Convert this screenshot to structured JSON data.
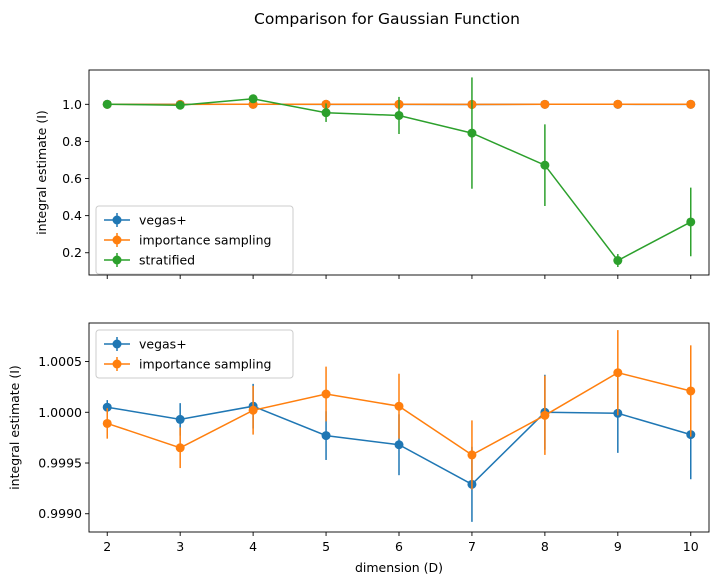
{
  "figure": {
    "suptitle": "Comparison for Gaussian Function"
  },
  "chart_data": [
    {
      "type": "line",
      "title": "",
      "xlabel": "",
      "ylabel": "integral estimate (I)",
      "x": [
        2,
        3,
        4,
        5,
        6,
        7,
        8,
        9,
        10
      ],
      "xlim": [
        1.75,
        10.25
      ],
      "ylim": [
        0.08,
        1.185
      ],
      "yticks": [
        0.2,
        0.4,
        0.6,
        0.8,
        1.0
      ],
      "ytick_labels": [
        "0.2",
        "0.4",
        "0.6",
        "0.8",
        "1.0"
      ],
      "xticks": [
        2,
        3,
        4,
        5,
        6,
        7,
        8,
        9,
        10
      ],
      "show_xtick_labels": false,
      "legend_position": "lower-left",
      "series": [
        {
          "name": "vegas+",
          "color": "#1f77b4",
          "values": [
            1.0001,
            0.9999,
            1.0001,
            0.9998,
            0.9997,
            0.9993,
            1.0,
            1.0,
            0.9998
          ],
          "errors": [
            0.0001,
            0.0002,
            0.0002,
            0.0002,
            0.0003,
            0.0004,
            0.0003,
            0.0004,
            0.0004
          ]
        },
        {
          "name": "importance sampling",
          "color": "#ff7f0e",
          "values": [
            0.9999,
            0.9997,
            1.0,
            1.0002,
            1.0001,
            0.9996,
            1.0,
            1.0004,
            1.0002
          ],
          "errors": [
            0.0002,
            0.0002,
            0.0002,
            0.0003,
            0.0003,
            0.0003,
            0.0004,
            0.0004,
            0.0005
          ]
        },
        {
          "name": "stratified",
          "color": "#2ca02c",
          "values": [
            1.0,
            0.995,
            1.03,
            0.955,
            0.94,
            0.845,
            0.672,
            0.158,
            0.366
          ],
          "errors": [
            0.004,
            0.01,
            0.015,
            0.05,
            0.1,
            0.3,
            0.22,
            0.035,
            0.185
          ]
        }
      ]
    },
    {
      "type": "line",
      "title": "",
      "xlabel": "dimension (D)",
      "ylabel": "integral estimate (I)",
      "x": [
        2,
        3,
        4,
        5,
        6,
        7,
        8,
        9,
        10
      ],
      "xlim": [
        1.75,
        10.25
      ],
      "ylim": [
        0.99882,
        1.00088
      ],
      "yticks": [
        0.999,
        0.9995,
        1.0,
        1.0005
      ],
      "ytick_labels": [
        "0.9990",
        "0.9995",
        "1.0000",
        "1.0005"
      ],
      "xticks": [
        2,
        3,
        4,
        5,
        6,
        7,
        8,
        9,
        10
      ],
      "xtick_labels": [
        "2",
        "3",
        "4",
        "5",
        "6",
        "7",
        "8",
        "9",
        "10"
      ],
      "show_xtick_labels": true,
      "legend_position": "upper-left",
      "series": [
        {
          "name": "vegas+",
          "color": "#1f77b4",
          "values": [
            1.00005,
            0.99993,
            1.00006,
            0.99977,
            0.99968,
            0.99929,
            1.0,
            0.99999,
            0.99978
          ],
          "errors": [
            7e-05,
            0.00016,
            0.00022,
            0.00024,
            0.0003,
            0.00037,
            0.00037,
            0.00039,
            0.00044
          ]
        },
        {
          "name": "importance sampling",
          "color": "#ff7f0e",
          "values": [
            0.99989,
            0.99965,
            1.00002,
            1.00018,
            1.00006,
            0.99958,
            0.99997,
            1.00039,
            1.00021
          ],
          "errors": [
            0.00015,
            0.0002,
            0.00024,
            0.00027,
            0.00032,
            0.00034,
            0.00039,
            0.00042,
            0.00045
          ]
        }
      ]
    }
  ]
}
